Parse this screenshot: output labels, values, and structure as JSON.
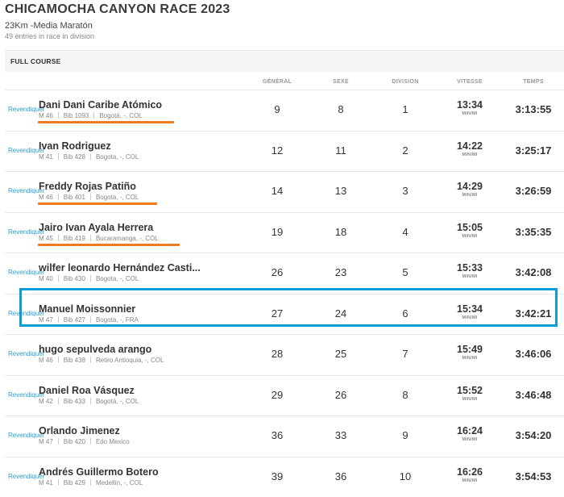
{
  "header": {
    "title": "CHICAMOCHA CANYON RACE 2023",
    "subtitle": "23Km -Media Maratón",
    "entries": "49 entries in race in division"
  },
  "panel": {
    "label": "FULL COURSE"
  },
  "columns": {
    "general": "GÉNÉRAL",
    "sexe": "SEXE",
    "division": "DIVISION",
    "vitesse": "VITESSE",
    "temps": "TEMPS"
  },
  "claim_label": "Revendiquer",
  "pace_unit": "MIN/MI",
  "colors": {
    "accent_link": "#2aa0d6",
    "annotation_underline": "#f07a1e",
    "annotation_box": "#0e9bd8"
  },
  "results": [
    {
      "name": "Dani Dani Caribe Atómico",
      "category": "M 46",
      "bib": "Bib 1093",
      "location": "Bogotá, -, COL",
      "general": "9",
      "sexe": "8",
      "division": "1",
      "pace": "13:34",
      "time": "3:13:55",
      "underlined": true
    },
    {
      "name": "Ivan Rodriguez",
      "category": "M 41",
      "bib": "Bib 428",
      "location": "Bogota, -, COL",
      "general": "12",
      "sexe": "11",
      "division": "2",
      "pace": "14:22",
      "time": "3:25:17",
      "underlined": false
    },
    {
      "name": "Freddy Rojas Patiño",
      "category": "M 46",
      "bib": "Bib 401",
      "location": "Bogota, -, COL",
      "general": "14",
      "sexe": "13",
      "division": "3",
      "pace": "14:29",
      "time": "3:26:59",
      "underlined": true
    },
    {
      "name": "Jairo Ivan Ayala Herrera",
      "category": "M 45",
      "bib": "Bib 419",
      "location": "Bucaramanga, -, COL",
      "general": "19",
      "sexe": "18",
      "division": "4",
      "pace": "15:05",
      "time": "3:35:35",
      "underlined": true
    },
    {
      "name": "wilfer leonardo Hernández Casti...",
      "category": "M 40",
      "bib": "Bib 430",
      "location": "Bogota, -, COL",
      "general": "26",
      "sexe": "23",
      "division": "5",
      "pace": "15:33",
      "time": "3:42:08",
      "underlined": false
    },
    {
      "name": "Manuel Moissonnier",
      "category": "M 47",
      "bib": "Bib 427",
      "location": "Bogota, -, FRA",
      "general": "27",
      "sexe": "24",
      "division": "6",
      "pace": "15:34",
      "time": "3:42:21",
      "underlined": false
    },
    {
      "name": "hugo sepulveda arango",
      "category": "M 46",
      "bib": "Bib 438",
      "location": "Retiro Antioquia, -, COL",
      "general": "28",
      "sexe": "25",
      "division": "7",
      "pace": "15:49",
      "time": "3:46:06",
      "underlined": false
    },
    {
      "name": "Daniel Roa Vásquez",
      "category": "M 42",
      "bib": "Bib 433",
      "location": "Bogotá, -, COL",
      "general": "29",
      "sexe": "26",
      "division": "8",
      "pace": "15:52",
      "time": "3:46:48",
      "underlined": false
    },
    {
      "name": "Orlando Jimenez",
      "category": "M 47",
      "bib": "Bib 420",
      "location": "Edo Mexico",
      "general": "36",
      "sexe": "33",
      "division": "9",
      "pace": "16:24",
      "time": "3:54:20",
      "underlined": false
    },
    {
      "name": "Andrés Guillermo Botero",
      "category": "M 41",
      "bib": "Bib 429",
      "location": "Medellín, -, COL",
      "general": "39",
      "sexe": "36",
      "division": "10",
      "pace": "16:26",
      "time": "3:54:53",
      "underlined": false
    }
  ]
}
